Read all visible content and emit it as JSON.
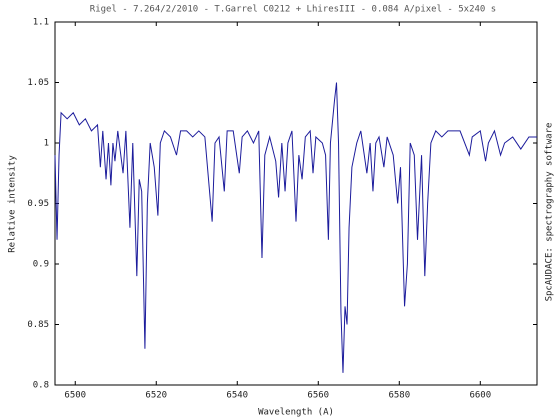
{
  "chart_data": {
    "type": "line",
    "title": "Rigel - 7.264/2/2010 - T.Garrel C0212 + LhiresIII - 0.084 A/pixel - 5x240 s",
    "xlabel": "Wavelength (A)",
    "ylabel": "Relative intensity",
    "side_note": "SpcAUDACE: spectrography software",
    "xlim": [
      6495,
      6614
    ],
    "ylim": [
      0.8,
      1.1
    ],
    "xticks": [
      6500,
      6520,
      6540,
      6560,
      6580,
      6600
    ],
    "yticks": [
      0.8,
      0.85,
      0.9,
      0.95,
      1,
      1.05,
      1.1
    ],
    "series": [
      {
        "name": "Rigel",
        "color": "#1c1c9c",
        "x": [
          6495.0,
          6495.5,
          6496.0,
          6496.5,
          6498,
          6499.5,
          6501,
          6502.5,
          6504,
          6505.5,
          6506.2,
          6506.8,
          6507.6,
          6508.2,
          6508.8,
          6509.3,
          6509.8,
          6510.5,
          6511.8,
          6512.5,
          6513.5,
          6514.2,
          6515.2,
          6515.8,
          6516.4,
          6517.2,
          6517.8,
          6518.5,
          6519.5,
          6520.4,
          6521.0,
          6522,
          6523.5,
          6525,
          6526,
          6527.5,
          6529,
          6530.5,
          6532,
          6533.8,
          6534.5,
          6535.5,
          6536.8,
          6537.5,
          6539,
          6540.5,
          6541.2,
          6542.5,
          6544,
          6545.3,
          6546.1,
          6546.8,
          6548,
          6549.5,
          6550.2,
          6551,
          6551.8,
          6552.5,
          6553.5,
          6554.5,
          6555.2,
          6556,
          6556.8,
          6558,
          6558.7,
          6559.4,
          6561,
          6561.8,
          6562.5,
          6563,
          6564.0,
          6564.5,
          6565.0,
          6565.6,
          6566.1,
          6566.6,
          6567.1,
          6567.6,
          6568.3,
          6569.5,
          6570.5,
          6572,
          6572.8,
          6573.5,
          6574.2,
          6575,
          6576.2,
          6577,
          6578.5,
          6579.6,
          6580.3,
          6581.3,
          6582,
          6582.7,
          6583.7,
          6584.5,
          6585.5,
          6586.3,
          6587,
          6587.8,
          6589,
          6590.5,
          6592,
          6593.5,
          6595,
          6597.3,
          6598,
          6600,
          6601.3,
          6602,
          6603.5,
          6605,
          6606,
          6608,
          6610,
          6612,
          6614
        ],
        "values": [
          0.99,
          0.92,
          0.99,
          1.025,
          1.02,
          1.025,
          1.015,
          1.02,
          1.01,
          1.015,
          0.98,
          1.01,
          0.97,
          1.0,
          0.965,
          1.0,
          0.985,
          1.01,
          0.975,
          1.01,
          0.93,
          1.0,
          0.89,
          0.97,
          0.96,
          0.83,
          0.95,
          1.0,
          0.98,
          0.94,
          1.0,
          1.01,
          1.005,
          0.99,
          1.01,
          1.01,
          1.005,
          1.01,
          1.005,
          0.935,
          1.0,
          1.005,
          0.96,
          1.01,
          1.01,
          0.975,
          1.005,
          1.01,
          1.0,
          1.01,
          0.905,
          0.99,
          1.005,
          0.985,
          0.955,
          1.0,
          0.96,
          1.0,
          1.01,
          0.935,
          0.99,
          0.97,
          1.005,
          1.01,
          0.975,
          1.005,
          1.0,
          0.99,
          0.92,
          1.0,
          1.035,
          1.05,
          1.0,
          0.86,
          0.81,
          0.865,
          0.85,
          0.93,
          0.98,
          1.0,
          1.01,
          0.975,
          1.0,
          0.96,
          1.0,
          1.005,
          0.98,
          1.005,
          0.99,
          0.95,
          0.98,
          0.865,
          0.9,
          1.0,
          0.99,
          0.92,
          0.99,
          0.89,
          0.95,
          1.0,
          1.01,
          1.005,
          1.01,
          1.01,
          1.01,
          0.99,
          1.005,
          1.01,
          0.985,
          1.0,
          1.01,
          0.99,
          1.0,
          1.005,
          0.995,
          1.005,
          1.005
        ]
      }
    ]
  }
}
